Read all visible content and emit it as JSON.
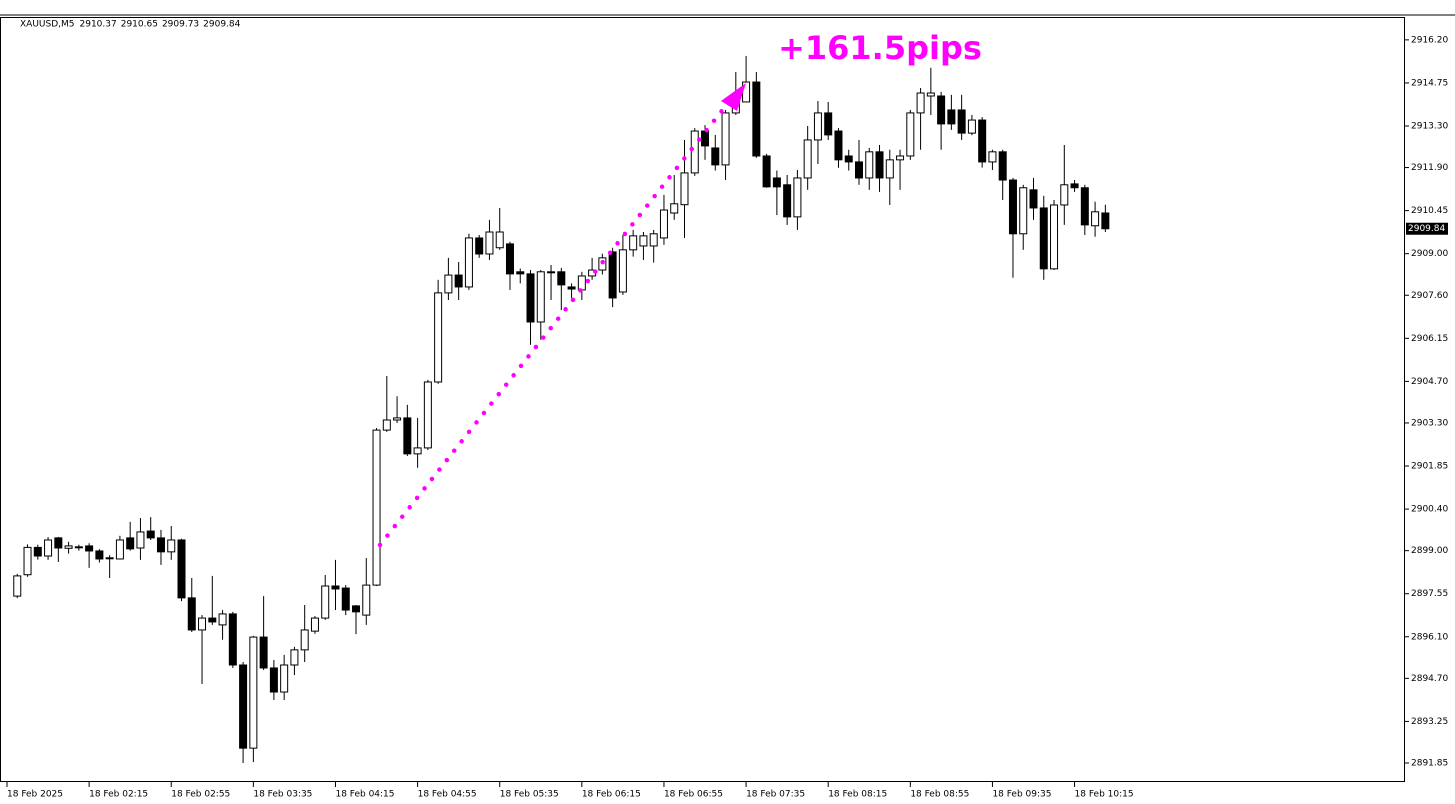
{
  "chart_data": {
    "type": "candlestick",
    "symbol": "XAUUSD,M5",
    "annotation": "+161.5pips",
    "categories": [
      "18 Feb 2025",
      null,
      null,
      null,
      null,
      null,
      null,
      null,
      "18 Feb 02:15",
      null,
      null,
      null,
      null,
      null,
      null,
      null,
      "18 Feb 02:55",
      null,
      null,
      null,
      null,
      null,
      null,
      null,
      "18 Feb 03:35",
      null,
      null,
      null,
      null,
      null,
      null,
      null,
      "18 Feb 04:15",
      null,
      null,
      null,
      null,
      null,
      null,
      null,
      "18 Feb 04:55",
      null,
      null,
      null,
      null,
      null,
      null,
      null,
      "18 Feb 05:35",
      null,
      null,
      null,
      null,
      null,
      null,
      null,
      "18 Feb 06:15",
      null,
      null,
      null,
      null,
      null,
      null,
      null,
      "18 Feb 06:55",
      null,
      null,
      null,
      null,
      null,
      null,
      null,
      "18 Feb 07:35",
      null,
      null,
      null,
      null,
      null,
      null,
      null,
      "18 Feb 08:15",
      null,
      null,
      null,
      null,
      null,
      null,
      null,
      "18 Feb 08:55",
      null,
      null,
      null,
      null,
      null,
      null,
      null,
      "18 Feb 09:35",
      null,
      null,
      null,
      null,
      null,
      null,
      null,
      "18 Feb 10:15",
      null,
      null,
      null
    ],
    "open": [
      null,
      2897.47,
      2898.19,
      2899.11,
      2898.82,
      2899.43,
      2899.08,
      2899.13,
      2899.16,
      2898.99,
      2898.75,
      2898.72,
      2899.43,
      2899.09,
      2899.66,
      2899.43,
      2898.96,
      2899.36,
      2897.41,
      2896.33,
      2896.73,
      2896.5,
      2896.87,
      2895.15,
      2892.35,
      2896.09,
      2895.05,
      2894.24,
      2895.15,
      2895.66,
      2896.29,
      2896.73,
      2897.81,
      2897.74,
      2897.14,
      2896.83,
      2897.84,
      2903.06,
      2903.4,
      2903.47,
      2902.26,
      2902.46,
      2904.68,
      2907.68,
      2908.28,
      2907.88,
      2909.53,
      2908.99,
      2909.2,
      2909.33,
      2908.39,
      2908.32,
      2906.7,
      2908.39,
      2908.39,
      2907.88,
      2907.78,
      2908.25,
      2908.45,
      2909.06,
      2907.71,
      2909.13,
      2909.26,
      2909.26,
      2909.53,
      2910.37,
      2910.65,
      2911.72,
      2913.13,
      2912.56,
      2911.99,
      2913.74,
      2914.11,
      2914.78,
      2912.29,
      2911.55,
      2911.32,
      2910.24,
      2911.55,
      2912.83,
      2913.74,
      2913.13,
      2912.29,
      2912.09,
      2911.55,
      2912.43,
      2911.55,
      2912.16,
      2912.29,
      2913.74,
      2914.31,
      2914.31,
      2913.84,
      2913.84,
      2913.06,
      2913.5,
      2912.09,
      2912.43,
      2911.48,
      2909.67,
      2911.15,
      2910.54,
      2908.49,
      2910.64,
      2911.35,
      2911.22,
      2909.94,
      2910.37
    ],
    "high": [
      null,
      2898.22,
      2899.21,
      2899.2,
      2899.46,
      2899.46,
      2899.3,
      2899.2,
      2899.25,
      2899.05,
      2898.85,
      2899.5,
      2899.97,
      2900.1,
      2900.13,
      2899.7,
      2899.83,
      2899.4,
      2898.08,
      2896.83,
      2898.15,
      2897.0,
      2896.94,
      2895.25,
      2896.13,
      2897.47,
      2895.32,
      2895.49,
      2895.76,
      2897.17,
      2896.8,
      2898.18,
      2898.69,
      2897.84,
      2897.17,
      2898.75,
      2903.13,
      2904.88,
      2904.2,
      2903.91,
      2903.47,
      2904.75,
      2908.12,
      2908.86,
      2908.72,
      2909.67,
      2909.63,
      2910.14,
      2910.54,
      2909.4,
      2908.5,
      2908.45,
      2908.45,
      2908.62,
      2908.52,
      2908.0,
      2908.39,
      2908.86,
      2909.0,
      2909.2,
      2909.63,
      2909.8,
      2909.73,
      2909.8,
      2910.98,
      2911.65,
      2912.83,
      2913.23,
      2913.33,
      2913.0,
      2913.84,
      2915.12,
      2915.66,
      2915.12,
      2912.36,
      2911.8,
      2911.65,
      2911.82,
      2913.3,
      2914.14,
      2914.11,
      2913.23,
      2912.5,
      2912.83,
      2912.56,
      2912.66,
      2912.5,
      2912.5,
      2913.84,
      2914.58,
      2915.26,
      2914.45,
      2914.35,
      2914.35,
      2913.67,
      2913.6,
      2912.5,
      2912.5,
      2911.55,
      2911.32,
      2911.55,
      2910.95,
      2910.81,
      2912.66,
      2911.48,
      2911.32,
      2910.75,
      2910.65
    ],
    "low": [
      null,
      2897.4,
      2898.12,
      2898.7,
      2898.69,
      2898.62,
      2898.9,
      2899.0,
      2898.42,
      2898.6,
      2898.08,
      2898.7,
      2899.0,
      2898.69,
      2899.36,
      2898.52,
      2898.69,
      2897.3,
      2896.26,
      2894.51,
      2896.5,
      2896.0,
      2895.05,
      2891.85,
      2891.88,
      2894.98,
      2893.97,
      2893.97,
      2894.81,
      2895.25,
      2896.2,
      2896.67,
      2897.0,
      2896.83,
      2896.19,
      2896.5,
      2897.81,
      2903.0,
      2903.3,
      2902.19,
      2901.79,
      2902.39,
      2904.62,
      2907.44,
      2907.44,
      2907.78,
      2908.86,
      2908.79,
      2909.13,
      2907.78,
      2908.0,
      2905.93,
      2906.1,
      2907.44,
      2907.1,
      2907.5,
      2907.44,
      2908.12,
      2908.3,
      2907.2,
      2907.61,
      2908.9,
      2908.79,
      2908.7,
      2909.3,
      2910.14,
      2909.53,
      2911.62,
      2912.16,
      2911.8,
      2911.48,
      2913.67,
      2914.11,
      2912.23,
      2911.22,
      2910.3,
      2909.97,
      2909.8,
      2911.15,
      2912.02,
      2912.83,
      2911.89,
      2911.8,
      2911.32,
      2911.15,
      2911.08,
      2910.64,
      2911.15,
      2912.16,
      2912.5,
      2913.67,
      2912.5,
      2913.17,
      2912.83,
      2912.99,
      2911.9,
      2911.82,
      2910.81,
      2908.19,
      2909.13,
      2910.14,
      2908.12,
      2908.45,
      2909.97,
      2911.08,
      2909.63,
      2909.57,
      2909.73
    ],
    "close": [
      null,
      2898.15,
      2899.11,
      2898.82,
      2899.36,
      2899.09,
      2899.16,
      2899.12,
      2898.99,
      2898.72,
      2898.76,
      2899.36,
      2899.06,
      2899.63,
      2899.43,
      2898.96,
      2899.36,
      2897.41,
      2896.33,
      2896.73,
      2896.6,
      2896.87,
      2895.15,
      2892.35,
      2896.09,
      2895.05,
      2894.24,
      2895.15,
      2895.66,
      2896.33,
      2896.73,
      2897.81,
      2897.71,
      2897.0,
      2896.94,
      2897.84,
      2903.06,
      2903.4,
      2903.47,
      2902.26,
      2902.46,
      2904.68,
      2907.68,
      2908.28,
      2907.88,
      2909.53,
      2908.99,
      2909.73,
      2909.73,
      2908.32,
      2908.32,
      2906.7,
      2908.39,
      2908.36,
      2907.95,
      2907.81,
      2908.25,
      2908.45,
      2908.86,
      2907.51,
      2909.13,
      2909.6,
      2909.6,
      2909.67,
      2910.47,
      2910.68,
      2911.72,
      2913.13,
      2912.63,
      2911.99,
      2913.74,
      2914.31,
      2914.78,
      2912.29,
      2911.25,
      2911.25,
      2910.24,
      2911.55,
      2912.83,
      2913.74,
      2913.0,
      2912.16,
      2912.09,
      2911.55,
      2912.43,
      2911.55,
      2912.16,
      2912.29,
      2913.74,
      2914.41,
      2914.41,
      2913.37,
      2913.37,
      2913.06,
      2913.5,
      2912.09,
      2912.43,
      2911.48,
      2909.67,
      2911.22,
      2910.54,
      2908.49,
      2910.64,
      2911.32,
      2911.22,
      2909.97,
      2910.41,
      2909.84
    ],
    "ylim": [
      2891.21,
      2916.97
    ],
    "yticks": [
      {
        "value": 2916.2,
        "label": "2916.20"
      },
      2914.75,
      {
        "value": 2913.3,
        "label": "2913.30"
      },
      {
        "value": 2911.9,
        "label": "2911.90"
      },
      2910.45,
      {
        "value": 2909,
        "label": "2909.00"
      },
      {
        "value": 2907.6,
        "label": "2907.60"
      },
      2906.15,
      {
        "value": 2904.7,
        "label": "2904.70"
      },
      {
        "value": 2903.3,
        "label": "2903.30"
      },
      2901.85,
      {
        "value": 2900.4,
        "label": "2900.40"
      },
      {
        "value": 2899,
        "label": "2899.00"
      },
      2897.55,
      {
        "value": 2896.1,
        "label": "2896.10"
      },
      {
        "value": 2894.7,
        "label": "2894.70"
      },
      2893.25,
      2891.85
    ],
    "up_color": "#ffffff",
    "down_color": "#000000",
    "grid": false
  }
}
